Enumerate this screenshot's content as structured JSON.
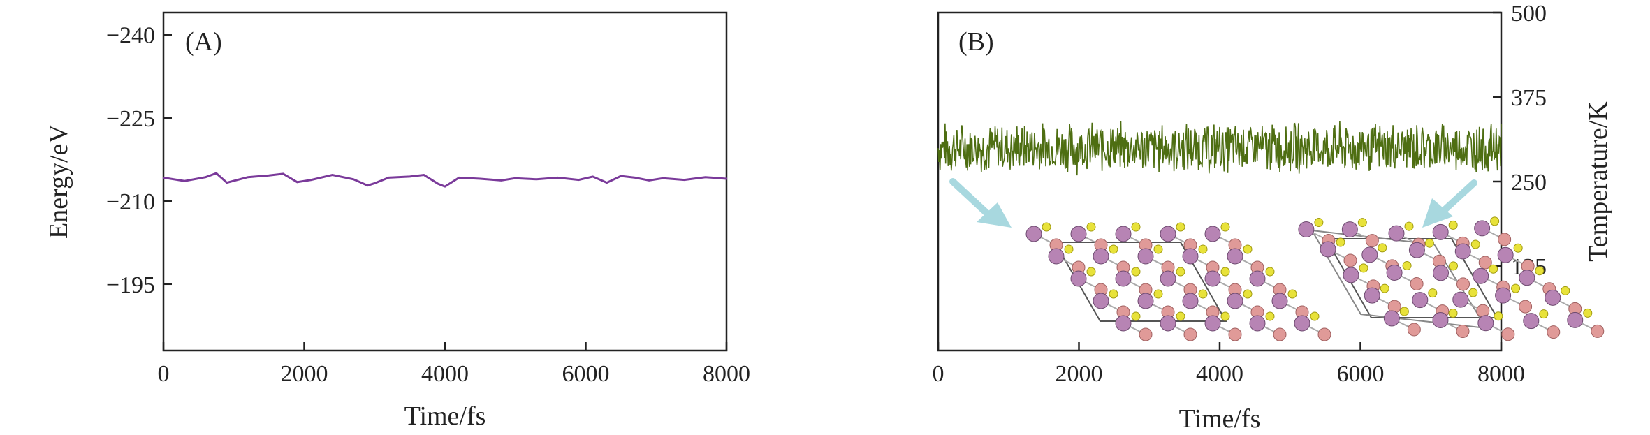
{
  "chart_data": [
    {
      "type": "line",
      "panel_label": "(A)",
      "xlabel": "Time/fs",
      "ylabel": "Energy/eV",
      "xlim": [
        0,
        8000
      ],
      "ylim": [
        -183,
        -244
      ],
      "y_inverted": true,
      "xticks": [
        0,
        2000,
        4000,
        6000,
        8000
      ],
      "yticks": [
        -240,
        -225,
        -210,
        -195
      ],
      "xtick_labels": [
        "0",
        "2000",
        "4000",
        "6000",
        "8000"
      ],
      "ytick_labels": [
        "−240",
        "−225",
        "−210",
        "−195"
      ],
      "series": [
        {
          "color": "#7a3a9a",
          "x": [
            0,
            300,
            600,
            750,
            900,
            1200,
            1500,
            1700,
            1900,
            2100,
            2400,
            2700,
            2900,
            3000,
            3200,
            3500,
            3700,
            3900,
            4000,
            4200,
            4500,
            4800,
            5000,
            5300,
            5600,
            5900,
            6100,
            6300,
            6500,
            6700,
            6900,
            7100,
            7400,
            7700,
            8000
          ],
          "y": [
            -214.2,
            -213.6,
            -214.3,
            -215.0,
            -213.3,
            -214.3,
            -214.6,
            -214.9,
            -213.4,
            -213.8,
            -214.7,
            -213.9,
            -212.8,
            -213.2,
            -214.2,
            -214.4,
            -214.7,
            -213.1,
            -212.6,
            -214.2,
            -214.0,
            -213.7,
            -214.1,
            -213.9,
            -214.2,
            -213.8,
            -214.4,
            -213.3,
            -214.5,
            -214.2,
            -213.7,
            -214.1,
            -213.8,
            -214.3,
            -214.0
          ]
        }
      ],
      "grid": false
    },
    {
      "type": "line",
      "panel_label": "(B)",
      "xlabel": "Time/fs",
      "ylabel": "Temperature/K",
      "y_axis_side": "right",
      "xlim": [
        0,
        8000
      ],
      "ylim": [
        0,
        500
      ],
      "xticks": [
        0,
        2000,
        4000,
        6000,
        8000
      ],
      "yticks": [
        125,
        250,
        375,
        500
      ],
      "xtick_labels": [
        "0",
        "2000",
        "4000",
        "6000",
        "8000"
      ],
      "ytick_labels": [
        "125",
        "250",
        "375",
        "500"
      ],
      "series": [
        {
          "color": "#4e6e12",
          "mean": 300,
          "fluctuation_range": [
            262,
            345
          ],
          "x_range": [
            0,
            8000
          ]
        }
      ],
      "insets": [
        {
          "name": "initial-structure",
          "points_to": "start",
          "position": "bottom-left"
        },
        {
          "name": "final-structure",
          "points_to": "end",
          "position": "bottom-right"
        }
      ],
      "arrow_color": "#a8d8df",
      "atom_colors": {
        "large": "#b784b4",
        "medium": "#e09a98",
        "small": "#e8e23a"
      },
      "grid": false
    }
  ]
}
